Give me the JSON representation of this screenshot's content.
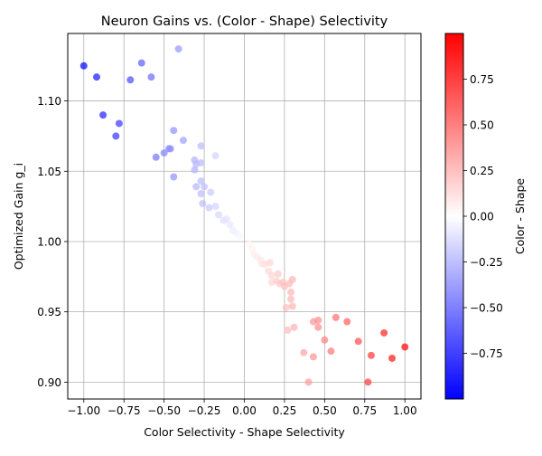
{
  "chart_data": {
    "type": "scatter",
    "title": "Neuron Gains vs. (Color - Shape) Selectivity",
    "xlabel": "Color Selectivity - Shape Selectivity",
    "ylabel": "Optimized Gain g_i",
    "xlim": [
      -1.1,
      1.1
    ],
    "ylim": [
      0.888,
      1.148
    ],
    "xticks": [
      -1.0,
      -0.75,
      -0.5,
      -0.25,
      0.0,
      0.25,
      0.5,
      0.75,
      1.0
    ],
    "xtick_labels": [
      "−1.00",
      "−0.75",
      "−0.50",
      "−0.25",
      "0.00",
      "0.25",
      "0.50",
      "0.75",
      "1.00"
    ],
    "yticks": [
      0.9,
      0.95,
      1.0,
      1.05,
      1.1
    ],
    "ytick_labels": [
      "0.90",
      "0.95",
      "1.00",
      "1.05",
      "1.10"
    ],
    "grid": true,
    "colorbar": {
      "label": "Color - Shape",
      "colormap": "bwr",
      "range": [
        -1.0,
        1.0
      ],
      "ticks": [
        -0.75,
        -0.5,
        -0.25,
        0.0,
        0.25,
        0.5,
        0.75
      ],
      "tick_labels": [
        "−0.75",
        "−0.50",
        "−0.25",
        "0.00",
        "0.25",
        "0.50",
        "0.75"
      ]
    },
    "marker_alpha": 0.7,
    "points": [
      {
        "x": -1.0,
        "y": 1.125
      },
      {
        "x": -0.92,
        "y": 1.117
      },
      {
        "x": -0.88,
        "y": 1.09
      },
      {
        "x": -0.8,
        "y": 1.075
      },
      {
        "x": -0.78,
        "y": 1.084
      },
      {
        "x": -0.71,
        "y": 1.115
      },
      {
        "x": -0.64,
        "y": 1.127
      },
      {
        "x": -0.58,
        "y": 1.117
      },
      {
        "x": -0.55,
        "y": 1.06
      },
      {
        "x": -0.5,
        "y": 1.063
      },
      {
        "x": -0.47,
        "y": 1.066
      },
      {
        "x": -0.46,
        "y": 1.066
      },
      {
        "x": -0.44,
        "y": 1.079
      },
      {
        "x": -0.44,
        "y": 1.046
      },
      {
        "x": -0.41,
        "y": 1.137
      },
      {
        "x": -0.38,
        "y": 1.072
      },
      {
        "x": -0.31,
        "y": 1.058
      },
      {
        "x": -0.31,
        "y": 1.051
      },
      {
        "x": -0.3,
        "y": 1.055
      },
      {
        "x": -0.3,
        "y": 1.039
      },
      {
        "x": -0.27,
        "y": 1.068
      },
      {
        "x": -0.27,
        "y": 1.056
      },
      {
        "x": -0.27,
        "y": 1.043
      },
      {
        "x": -0.27,
        "y": 1.034
      },
      {
        "x": -0.26,
        "y": 1.027
      },
      {
        "x": -0.25,
        "y": 1.039
      },
      {
        "x": -0.22,
        "y": 1.024
      },
      {
        "x": -0.21,
        "y": 1.035
      },
      {
        "x": -0.18,
        "y": 1.061
      },
      {
        "x": -0.18,
        "y": 1.025
      },
      {
        "x": -0.16,
        "y": 1.019
      },
      {
        "x": -0.13,
        "y": 1.015
      },
      {
        "x": -0.11,
        "y": 1.016
      },
      {
        "x": -0.09,
        "y": 1.012
      },
      {
        "x": -0.07,
        "y": 1.008
      },
      {
        "x": -0.05,
        "y": 1.006
      },
      {
        "x": -0.03,
        "y": 1.004
      },
      {
        "x": 0.03,
        "y": 0.998
      },
      {
        "x": 0.05,
        "y": 0.995
      },
      {
        "x": 0.06,
        "y": 0.991
      },
      {
        "x": 0.08,
        "y": 0.989
      },
      {
        "x": 0.1,
        "y": 0.987
      },
      {
        "x": 0.11,
        "y": 0.984
      },
      {
        "x": 0.13,
        "y": 0.984
      },
      {
        "x": 0.15,
        "y": 0.979
      },
      {
        "x": 0.16,
        "y": 0.985
      },
      {
        "x": 0.17,
        "y": 0.976
      },
      {
        "x": 0.17,
        "y": 0.971
      },
      {
        "x": 0.2,
        "y": 0.972
      },
      {
        "x": 0.21,
        "y": 0.977
      },
      {
        "x": 0.22,
        "y": 0.97
      },
      {
        "x": 0.24,
        "y": 0.971
      },
      {
        "x": 0.25,
        "y": 0.968
      },
      {
        "x": 0.26,
        "y": 0.953
      },
      {
        "x": 0.27,
        "y": 0.937
      },
      {
        "x": 0.28,
        "y": 0.97
      },
      {
        "x": 0.29,
        "y": 0.964
      },
      {
        "x": 0.29,
        "y": 0.959
      },
      {
        "x": 0.3,
        "y": 0.954
      },
      {
        "x": 0.3,
        "y": 0.973
      },
      {
        "x": 0.31,
        "y": 0.939
      },
      {
        "x": 0.37,
        "y": 0.921
      },
      {
        "x": 0.4,
        "y": 0.9
      },
      {
        "x": 0.43,
        "y": 0.943
      },
      {
        "x": 0.43,
        "y": 0.918
      },
      {
        "x": 0.46,
        "y": 0.939
      },
      {
        "x": 0.46,
        "y": 0.944
      },
      {
        "x": 0.5,
        "y": 0.93
      },
      {
        "x": 0.54,
        "y": 0.922
      },
      {
        "x": 0.57,
        "y": 0.946
      },
      {
        "x": 0.64,
        "y": 0.943
      },
      {
        "x": 0.71,
        "y": 0.929
      },
      {
        "x": 0.77,
        "y": 0.9
      },
      {
        "x": 0.79,
        "y": 0.919
      },
      {
        "x": 0.87,
        "y": 0.935
      },
      {
        "x": 0.92,
        "y": 0.917
      },
      {
        "x": 1.0,
        "y": 0.925
      }
    ]
  }
}
